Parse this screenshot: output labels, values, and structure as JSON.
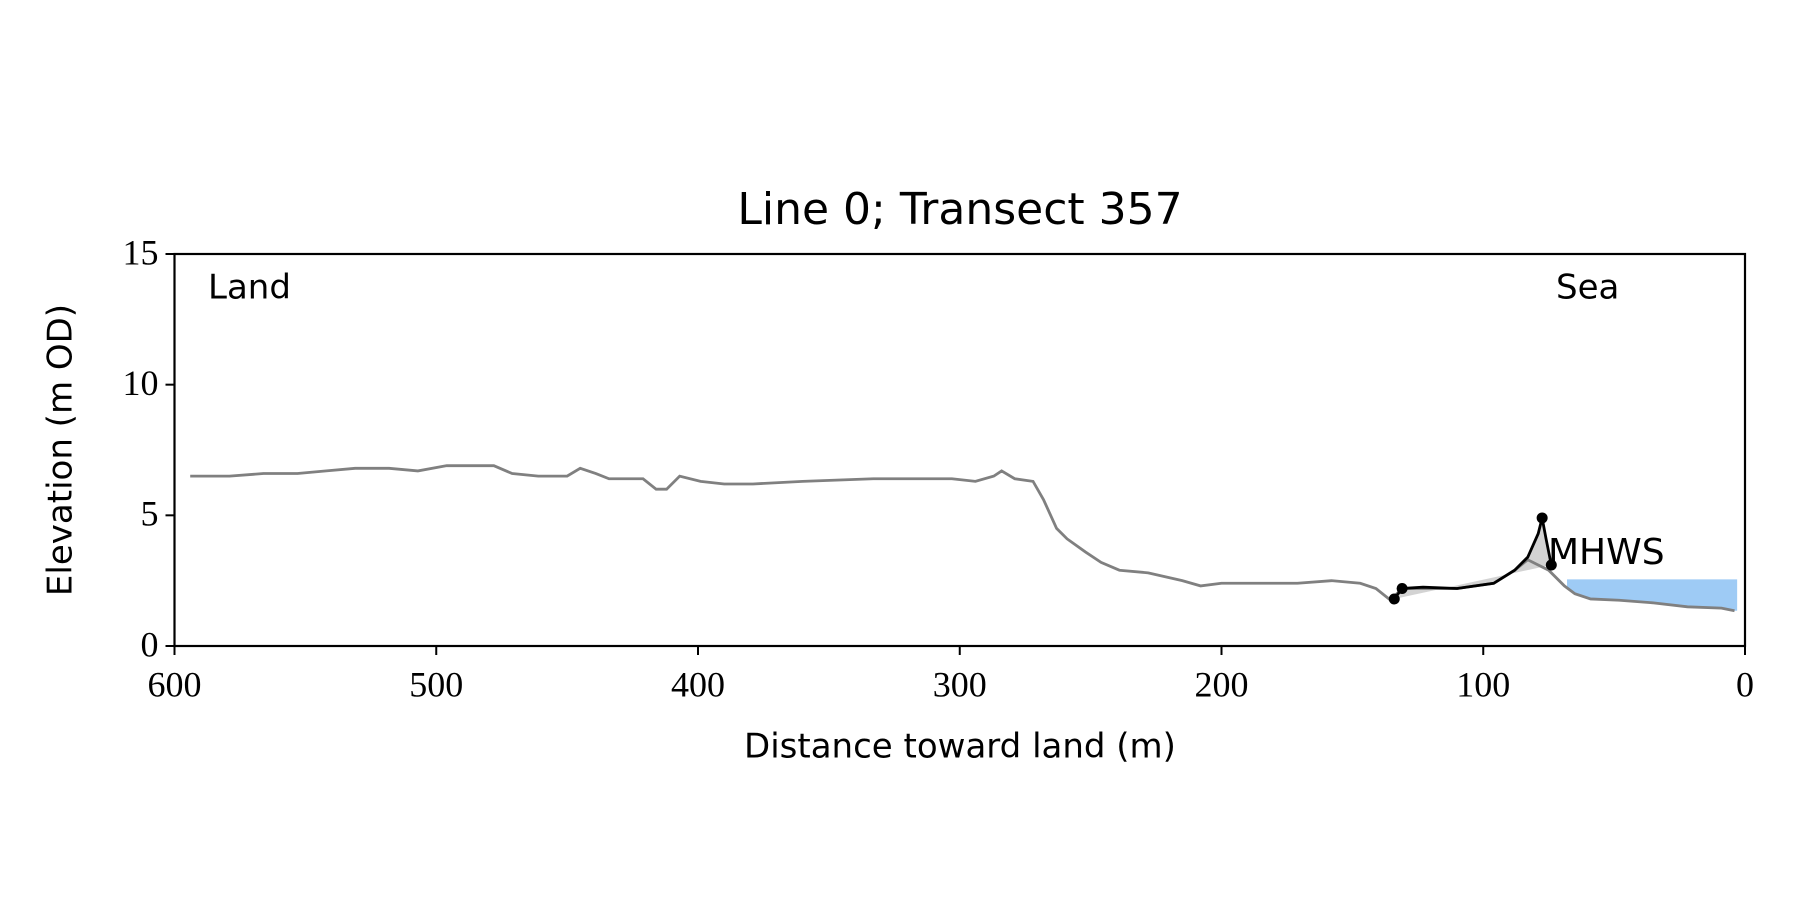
{
  "chart_data": {
    "type": "line",
    "title": "Line 0; Transect 357",
    "xlabel": "Distance toward land (m)",
    "ylabel": "Elevation (m OD)",
    "annotations": [
      "Land",
      "Sea"
    ],
    "mhws_label": "MHWS",
    "xlim": [
      600,
      0
    ],
    "ylim": [
      0,
      15
    ],
    "xticks": [
      600,
      500,
      400,
      300,
      200,
      100,
      0
    ],
    "yticks": [
      0,
      5,
      10,
      15
    ],
    "profile": {
      "color": "#808080",
      "x": [
        594,
        579,
        566,
        553,
        542,
        531,
        518,
        507,
        496,
        485,
        478,
        471,
        461,
        450,
        445,
        439,
        434,
        428,
        421,
        416,
        412,
        407,
        399,
        390,
        379,
        360,
        333,
        303,
        294,
        287,
        284,
        279,
        272,
        268,
        263,
        259,
        252,
        246,
        239,
        228,
        215,
        208,
        200,
        196,
        184,
        171,
        158,
        147,
        141,
        136,
        134,
        131,
        123,
        110,
        96,
        88,
        83,
        79,
        75,
        69,
        65,
        59,
        48,
        35,
        22,
        9,
        4
      ],
      "y": [
        6.5,
        6.5,
        6.6,
        6.6,
        6.7,
        6.8,
        6.8,
        6.7,
        6.9,
        6.9,
        6.9,
        6.6,
        6.5,
        6.5,
        6.8,
        6.6,
        6.4,
        6.4,
        6.4,
        6.0,
        6.0,
        6.5,
        6.3,
        6.2,
        6.2,
        6.3,
        6.4,
        6.4,
        6.3,
        6.5,
        6.7,
        6.4,
        6.3,
        5.6,
        4.5,
        4.1,
        3.6,
        3.2,
        2.9,
        2.8,
        2.5,
        2.3,
        2.4,
        2.4,
        2.4,
        2.4,
        2.5,
        2.4,
        2.2,
        1.8,
        1.9,
        2.2,
        2.2,
        2.2,
        2.4,
        2.9,
        3.3,
        3.1,
        2.9,
        2.3,
        2.0,
        1.8,
        1.75,
        1.65,
        1.5,
        1.45,
        1.35
      ]
    },
    "dune": {
      "color": "#000000",
      "fill": "#d3d3d3",
      "x": [
        134,
        131,
        123,
        110,
        96,
        88,
        83,
        79,
        77.5,
        76,
        74
      ],
      "y": [
        1.8,
        2.2,
        2.25,
        2.2,
        2.4,
        2.9,
        3.4,
        4.3,
        4.9,
        4.1,
        3.1
      ],
      "markers": [
        0,
        1,
        8,
        10
      ]
    },
    "mhws": 2.55,
    "mhws_extent": [
      68,
      3
    ],
    "mhws_color": "#9ecbf5",
    "mhws_label_color": "#6a9bd0"
  }
}
